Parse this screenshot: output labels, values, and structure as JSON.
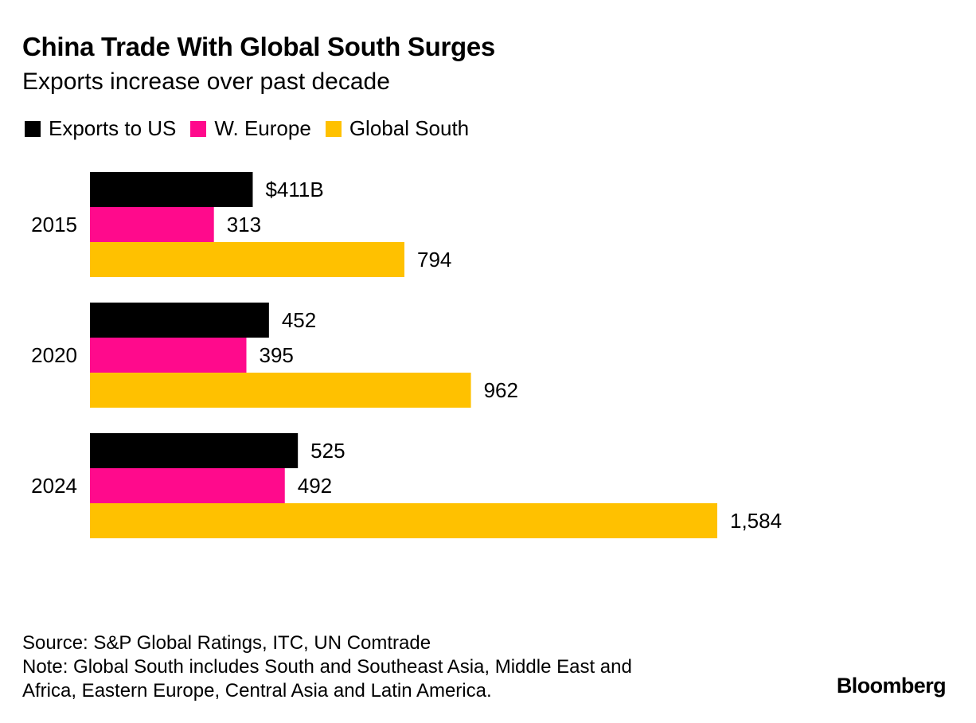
{
  "chart_data": {
    "type": "bar",
    "orientation": "horizontal",
    "title": "China Trade With Global South Surges",
    "subtitle": "Exports increase over past decade",
    "categories": [
      "2015",
      "2020",
      "2024"
    ],
    "series": [
      {
        "name": "Exports to US",
        "color": "#000000",
        "values": [
          411,
          452,
          525
        ],
        "labels": [
          "$411B",
          "452",
          "525"
        ]
      },
      {
        "name": "W. Europe",
        "color": "#ff0a8c",
        "values": [
          313,
          395,
          492
        ],
        "labels": [
          "313",
          "395",
          "492"
        ]
      },
      {
        "name": "Global South",
        "color": "#ffc100",
        "values": [
          794,
          962,
          1584
        ],
        "labels": [
          "794",
          "962",
          "1,584"
        ]
      }
    ],
    "xlim": [
      0,
      1584
    ],
    "grid": false,
    "legend_position": "top-left"
  },
  "footer": {
    "source": "Source: S&P Global Ratings, ITC, UN Comtrade",
    "note_line1": "Note: Global South includes South and Southeast Asia, Middle East and",
    "note_line2": "Africa, Eastern Europe, Central Asia and Latin America."
  },
  "brand": "Bloomberg"
}
